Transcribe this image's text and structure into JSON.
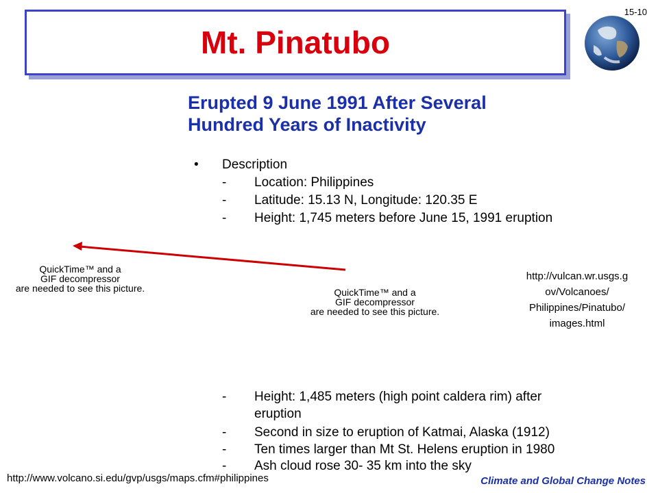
{
  "slide": {
    "number": "15-10",
    "title": "Mt. Pinatubo",
    "subtitle_line1": "Erupted 9 June 1991 After Several",
    "subtitle_line2": "Hundred Years of Inactivity"
  },
  "description": {
    "bullet": "•",
    "heading": "Description",
    "items_top": [
      "Location: Philippines",
      "Latitude: 15.13 N, Longitude: 120.35 E",
      "Height: 1,745 meters before June 15, 1991 eruption"
    ],
    "items_bottom": [
      "Height:  1,485 meters (high point caldera rim) after",
      "eruption",
      "Second in size to eruption of Katmai, Alaska (1912)",
      "Ten times larger than Mt St. Helens eruption in 1980",
      "Ash cloud rose 30- 35 km into the sky"
    ],
    "dash": "-"
  },
  "placeholders": {
    "qt_line1": "QuickTime™ and a",
    "qt_line2": "GIF decompressor",
    "qt_line3": "are needed to see this picture."
  },
  "links": {
    "right_url": [
      "http://vulcan.wr.usgs.g",
      "ov/Volcanoes/",
      "Philippines/Pinatubo/",
      "images.html"
    ],
    "bottom_url": "http://www.volcano.si.edu/gvp/usgs/maps.cfm#philippines"
  },
  "footer": "Climate and Global Change Notes",
  "colors": {
    "title": "#d9000d",
    "subtitle": "#1a2fa8",
    "frame": "#3a43c9",
    "arrow": "#cc0000"
  }
}
